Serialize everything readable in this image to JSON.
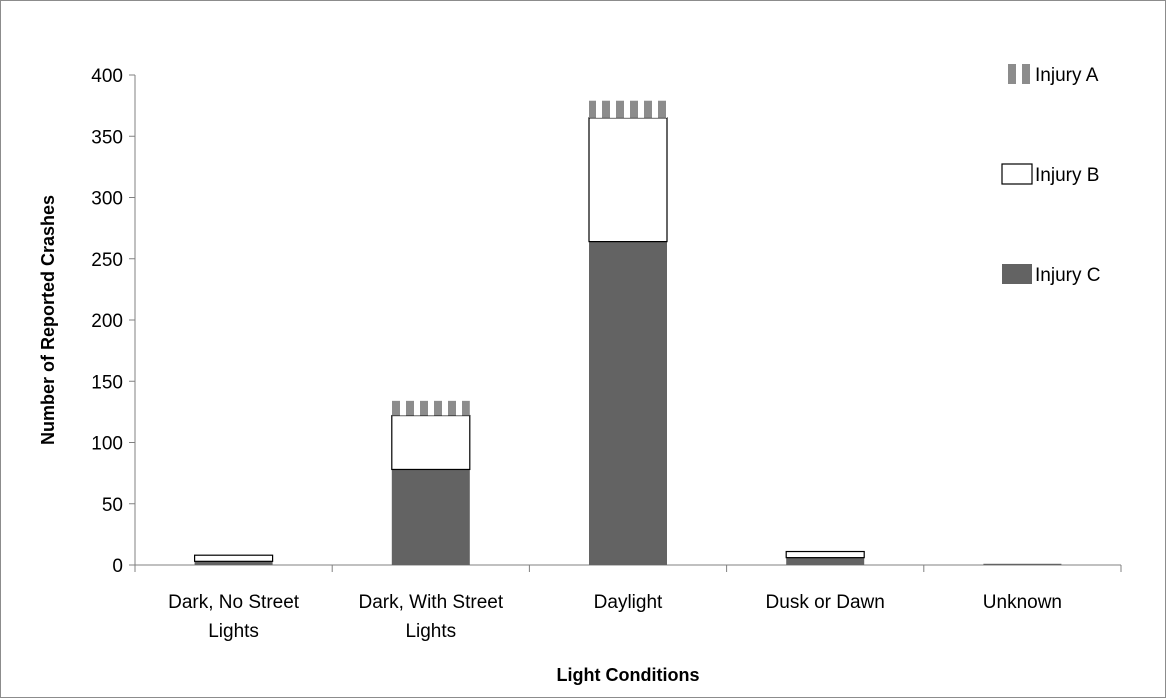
{
  "chart_data": {
    "type": "bar",
    "stacked": true,
    "categories": [
      [
        "Dark, No Street",
        "Lights"
      ],
      [
        "Dark, With Street",
        "Lights"
      ],
      [
        "Daylight"
      ],
      [
        "Dusk or Dawn"
      ],
      [
        "Unknown"
      ]
    ],
    "series": [
      {
        "name": "Injury C",
        "values": [
          3,
          78,
          264,
          6,
          1
        ],
        "color": "#636363",
        "pattern": "solid"
      },
      {
        "name": "Injury B",
        "values": [
          5,
          44,
          101,
          5,
          0
        ],
        "color": "#ffffff",
        "pattern": "outlined"
      },
      {
        "name": "Injury A",
        "values": [
          0,
          12,
          14,
          0,
          0
        ],
        "color": "#8c8c8c",
        "pattern": "vertical-stripes"
      }
    ],
    "legend_order": [
      "Injury A",
      "Injury B",
      "Injury C"
    ],
    "legend_position": "top-right",
    "xlabel": "Light Conditions",
    "ylabel": "Number of Reported Crashes",
    "ylim": [
      0,
      400
    ],
    "yticks": [
      0,
      50,
      100,
      150,
      200,
      250,
      300,
      350,
      400
    ],
    "grid": false
  }
}
